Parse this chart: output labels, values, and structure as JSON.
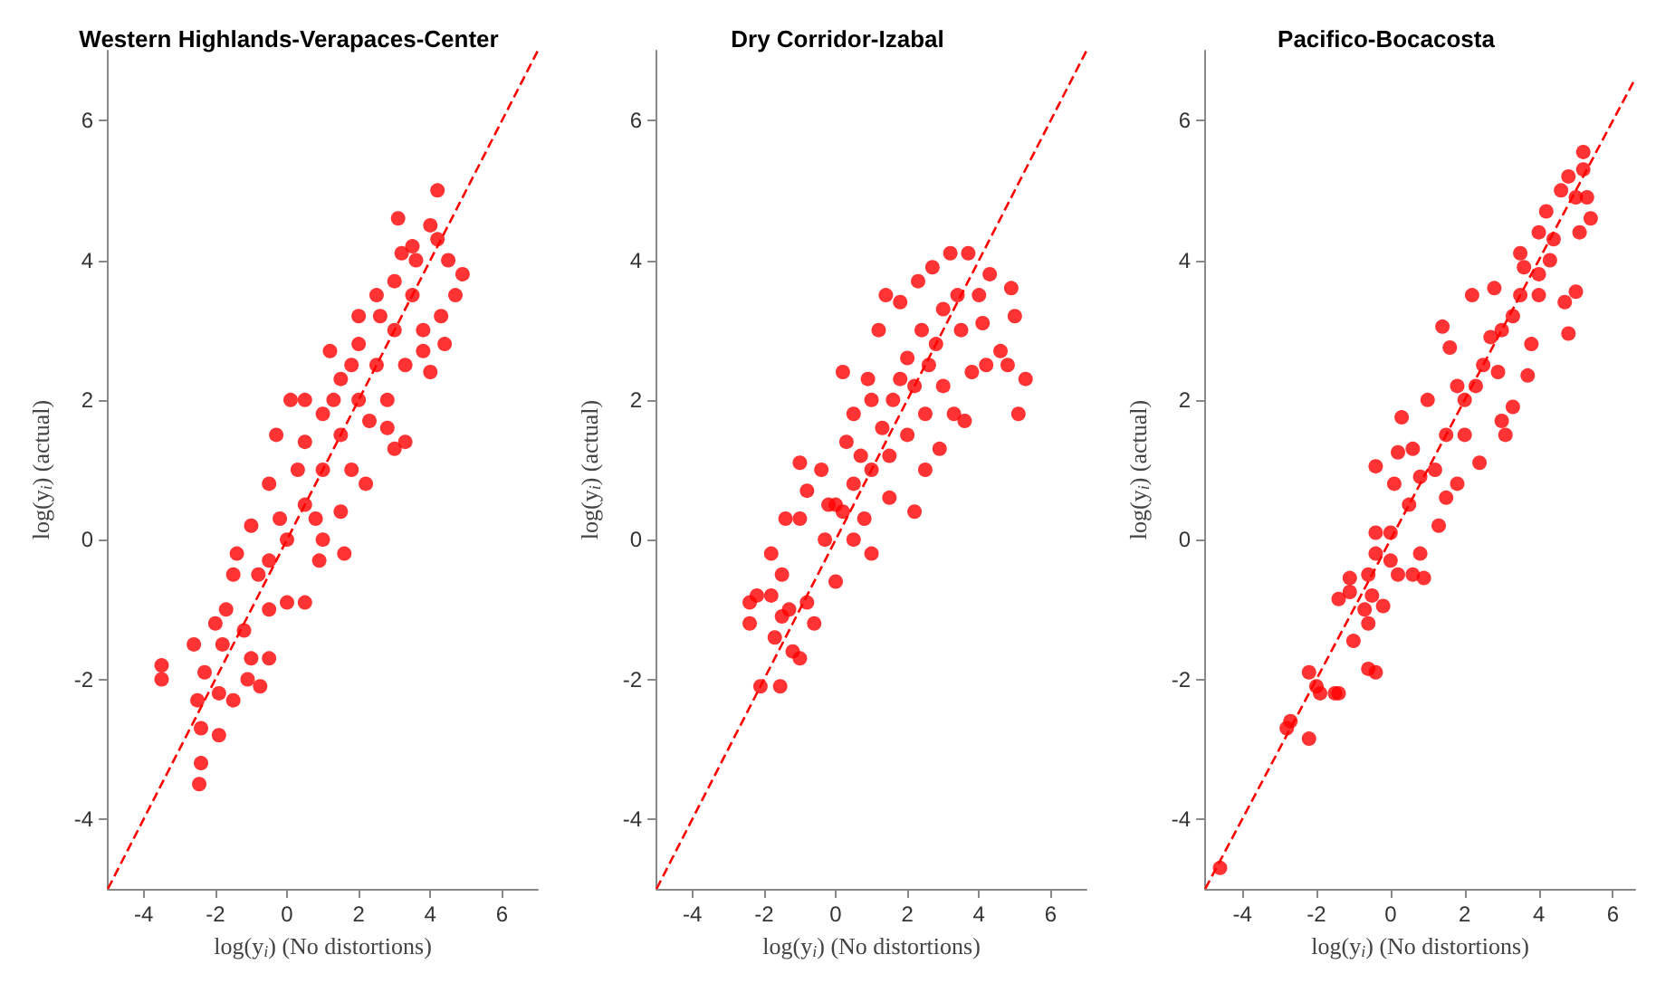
{
  "chart_data": [
    {
      "type": "scatter",
      "title": "Western Highlands-Verapaces-Center",
      "xlabel": "log(y$_{i}$) (No distortions)",
      "ylabel": "log(y$_{i}$) (actual)",
      "xlim": [
        -5,
        7
      ],
      "ylim": [
        -5,
        7
      ],
      "xticks": [
        -4,
        -2,
        0,
        2,
        4,
        6
      ],
      "yticks": [
        -4,
        -2,
        0,
        2,
        4,
        6
      ],
      "marker": "circle",
      "series": [
        {
          "color": "#ff0000",
          "x": [
            -3.5,
            -3.5,
            -2.6,
            -2.4,
            -2.4,
            -2.45,
            -1.9,
            -2.5,
            -2.3,
            -1.9,
            -1.5,
            -1.1,
            -0.75,
            -0.5,
            -1.0,
            -2.0,
            -1.7,
            -1.5,
            -1.4,
            -1.0,
            -0.5,
            -0.3,
            0.1,
            0.5,
            1.2,
            1.5,
            2.0,
            2.5,
            3.1,
            4.0,
            4.2,
            3.5,
            4.2,
            4.9,
            4.7,
            4.4,
            4.0,
            3.3,
            3.0,
            2.2,
            1.6,
            1.0,
            0.5,
            0.0,
            -0.5,
            0.0,
            0.5,
            1.0,
            1.5,
            2.0,
            2.5,
            3.0,
            3.5,
            0.3,
            0.8,
            1.3,
            1.8,
            2.3,
            2.8,
            3.3,
            3.8,
            2.0,
            2.6,
            3.0,
            3.6,
            1.0,
            0.5,
            -0.2,
            -0.8,
            -0.5,
            4.3,
            3.8,
            1.5,
            0.9,
            -1.2,
            -1.8,
            2.8,
            4.5,
            3.2,
            1.8
          ],
          "values": [
            -1.8,
            -2.0,
            -1.5,
            -2.7,
            -3.2,
            -3.5,
            -2.8,
            -2.3,
            -1.9,
            -2.2,
            -2.3,
            -2.0,
            -2.1,
            -1.7,
            -1.7,
            -1.2,
            -1.0,
            -0.5,
            -0.2,
            0.2,
            0.8,
            1.5,
            2.0,
            2.0,
            2.7,
            2.3,
            3.2,
            3.5,
            4.6,
            4.5,
            5.0,
            4.2,
            4.3,
            3.8,
            3.5,
            2.8,
            2.4,
            1.4,
            1.3,
            0.8,
            -0.2,
            0.0,
            -0.9,
            -0.9,
            -1.0,
            0.0,
            0.5,
            1.0,
            1.5,
            2.0,
            2.5,
            3.0,
            3.5,
            1.0,
            0.3,
            2.0,
            1.0,
            1.7,
            2.0,
            2.5,
            3.0,
            2.8,
            3.2,
            3.7,
            4.0,
            1.8,
            1.4,
            0.3,
            -0.5,
            -0.3,
            3.2,
            2.7,
            0.4,
            -0.3,
            -1.3,
            -1.5,
            1.6,
            4.0,
            4.1,
            2.5
          ]
        },
        {
          "type": "line",
          "color": "#ff0000",
          "line_style": "dashed",
          "marker": "none",
          "x": [
            -5,
            7
          ],
          "values": [
            -5,
            7
          ]
        }
      ]
    },
    {
      "type": "scatter",
      "title": "Dry Corridor-Izabal",
      "xlabel": "log(y$_{i}$) (No distortions)",
      "ylabel": "log(y$_{i}$) (actual)",
      "xlim": [
        -5,
        7
      ],
      "ylim": [
        -5,
        7
      ],
      "xticks": [
        -4,
        -2,
        0,
        2,
        4,
        6
      ],
      "yticks": [
        -4,
        -2,
        0,
        2,
        4,
        6
      ],
      "marker": "circle",
      "series": [
        {
          "color": "#ff0000",
          "x": [
            -2.4,
            -2.4,
            -2.2,
            -2.1,
            -1.8,
            -1.7,
            -1.55,
            -1.5,
            -1.3,
            -1.2,
            -1.0,
            -0.8,
            -0.6,
            -1.8,
            -1.5,
            -1.4,
            -1.0,
            -1.0,
            -0.8,
            -0.4,
            -0.3,
            0.0,
            0.0,
            0.2,
            0.3,
            0.5,
            0.5,
            0.8,
            1.0,
            0.9,
            1.0,
            1.2,
            1.4,
            1.5,
            1.6,
            1.8,
            2.0,
            2.2,
            2.3,
            2.5,
            2.6,
            2.7,
            2.9,
            3.0,
            3.2,
            3.3,
            3.5,
            3.6,
            3.7,
            3.8,
            4.0,
            4.1,
            4.2,
            4.3,
            4.6,
            4.8,
            4.9,
            5.0,
            5.1,
            5.3,
            0.5,
            1.3,
            1.8,
            2.2,
            2.8,
            3.0,
            0.2,
            -0.2,
            0.7,
            1.5,
            2.4,
            3.4,
            1.0,
            2.0,
            2.5
          ],
          "values": [
            -1.2,
            -0.9,
            -0.8,
            -2.1,
            -0.8,
            -1.4,
            -2.1,
            -1.1,
            -1.0,
            -1.6,
            -1.7,
            -0.9,
            -1.2,
            -0.2,
            -0.5,
            0.3,
            1.1,
            0.3,
            0.7,
            1.0,
            0.0,
            -0.6,
            0.5,
            2.4,
            1.4,
            1.8,
            0.0,
            0.3,
            -0.2,
            2.3,
            1.0,
            3.0,
            3.5,
            0.6,
            2.0,
            3.4,
            1.5,
            0.4,
            3.7,
            1.0,
            2.5,
            3.9,
            1.3,
            2.2,
            4.1,
            1.8,
            3.0,
            1.7,
            4.1,
            2.4,
            3.5,
            3.1,
            2.5,
            3.8,
            2.7,
            2.5,
            3.6,
            3.2,
            1.8,
            2.3,
            0.8,
            1.6,
            2.3,
            2.2,
            2.8,
            3.3,
            0.4,
            0.5,
            1.2,
            1.2,
            3.0,
            3.5,
            2.0,
            2.6,
            1.8
          ]
        },
        {
          "type": "line",
          "color": "#ff0000",
          "line_style": "dashed",
          "marker": "none",
          "x": [
            -5,
            7
          ],
          "values": [
            -5,
            7
          ]
        }
      ]
    },
    {
      "type": "scatter",
      "title": "Pacifico-Bocacosta",
      "xlabel": "log(y$_{i}$) (No distortions)",
      "ylabel": "log(y$_{i}$) (actual)",
      "xlim": [
        -5,
        6.6
      ],
      "ylim": [
        -5,
        7
      ],
      "xticks": [
        -4,
        -2,
        0,
        2,
        4,
        6
      ],
      "yticks": [
        -4,
        -2,
        0,
        2,
        4,
        6
      ],
      "marker": "circle",
      "series": [
        {
          "color": "#ff0000",
          "x": [
            -4.6,
            -2.8,
            -2.7,
            -2.2,
            -2.2,
            -2.0,
            -1.9,
            -1.5,
            -1.4,
            -0.6,
            -0.4,
            -1.0,
            -0.6,
            -0.7,
            -1.4,
            -1.1,
            -1.1,
            -0.5,
            -0.2,
            -0.4,
            -0.6,
            -0.4,
            0.0,
            0.0,
            0.2,
            0.6,
            0.9,
            0.8,
            1.3,
            -0.4,
            0.1,
            0.2,
            0.3,
            0.5,
            0.6,
            1.0,
            1.2,
            1.5,
            1.4,
            1.6,
            1.8,
            2.0,
            2.0,
            2.2,
            2.4,
            2.5,
            2.8,
            3.0,
            3.1,
            3.3,
            3.0,
            3.5,
            3.7,
            3.8,
            3.5,
            4.0,
            4.0,
            4.2,
            4.3,
            4.6,
            4.7,
            4.8,
            4.8,
            5.0,
            5.0,
            5.1,
            5.2,
            5.2,
            5.4,
            5.3,
            1.5,
            2.3,
            2.7,
            3.3,
            4.0,
            4.4,
            0.8,
            1.8,
            2.9,
            3.6
          ],
          "values": [
            -4.7,
            -2.7,
            -2.6,
            -2.85,
            -1.9,
            -2.1,
            -2.2,
            -2.2,
            -2.2,
            -1.85,
            -1.9,
            -1.45,
            -1.2,
            -1.0,
            -0.85,
            -0.55,
            -0.75,
            -0.8,
            -0.95,
            -0.2,
            -0.5,
            0.1,
            -0.3,
            0.1,
            -0.5,
            -0.5,
            -0.55,
            -0.2,
            0.2,
            1.05,
            0.8,
            1.25,
            1.75,
            0.5,
            1.3,
            2.0,
            1.0,
            0.6,
            3.05,
            2.75,
            0.8,
            1.5,
            2.0,
            3.5,
            1.1,
            2.5,
            3.6,
            1.7,
            1.5,
            1.9,
            3.0,
            3.5,
            2.35,
            2.8,
            4.1,
            3.8,
            4.4,
            4.7,
            4.0,
            5.0,
            3.4,
            2.95,
            5.2,
            4.9,
            3.55,
            4.4,
            5.3,
            5.55,
            4.6,
            4.9,
            1.5,
            2.2,
            2.9,
            3.2,
            3.5,
            4.3,
            0.9,
            2.2,
            2.4,
            3.9
          ]
        },
        {
          "type": "line",
          "color": "#ff0000",
          "line_style": "dashed",
          "marker": "none",
          "x": [
            -5,
            6.6
          ],
          "values": [
            -5,
            6.6
          ]
        }
      ]
    }
  ]
}
